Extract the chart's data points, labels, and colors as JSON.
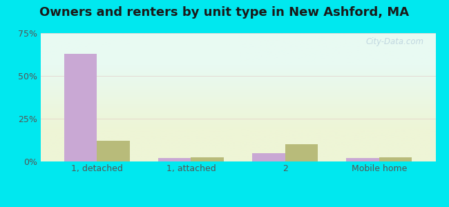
{
  "title": "Owners and renters by unit type in New Ashford, MA",
  "categories": [
    "1, detached",
    "1, attached",
    "2",
    "Mobile home"
  ],
  "owner_values": [
    63.0,
    2.0,
    5.0,
    2.0
  ],
  "renter_values": [
    12.0,
    2.5,
    10.0,
    2.5
  ],
  "owner_color": "#c9a8d4",
  "renter_color": "#b8bb7a",
  "ylim": [
    0,
    75
  ],
  "yticks": [
    0,
    25,
    50,
    75
  ],
  "ytick_labels": [
    "0%",
    "25%",
    "50%",
    "75%"
  ],
  "title_fontsize": 13,
  "tick_fontsize": 9,
  "legend_fontsize": 10,
  "bar_width": 0.35,
  "bg_top_color": "#e8faf2",
  "bg_bottom_color": "#eef5d6",
  "outer_bg": "#00e8ef",
  "grid_color": "#ddbbbb",
  "grid_alpha": 0.5,
  "watermark_text": "City-Data.com",
  "watermark_color": "#b0c8d8",
  "watermark_alpha": 0.7
}
